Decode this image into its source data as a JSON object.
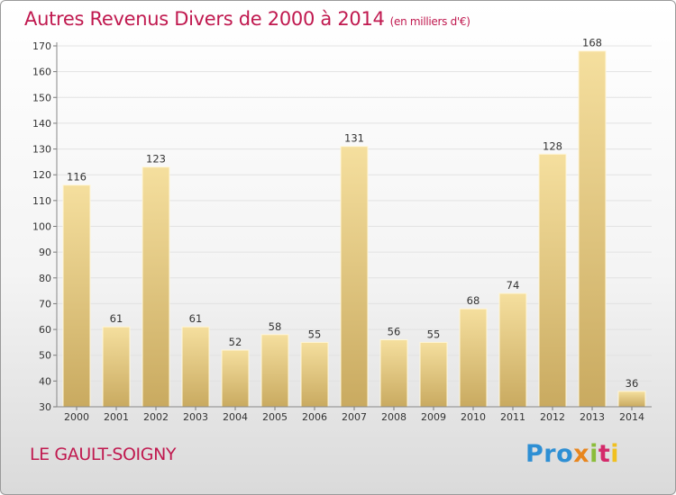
{
  "chart_data": {
    "type": "bar",
    "title": "Autres Revenus Divers de 2000 à 2014",
    "subtitle": "(en milliers d'€)",
    "categories": [
      "2000",
      "2001",
      "2002",
      "2003",
      "2004",
      "2005",
      "2006",
      "2007",
      "2008",
      "2009",
      "2010",
      "2011",
      "2012",
      "2013",
      "2014"
    ],
    "values": [
      116,
      61,
      123,
      61,
      52,
      58,
      55,
      131,
      56,
      55,
      68,
      74,
      128,
      168,
      36
    ],
    "ylim": [
      30,
      170
    ],
    "yticks": [
      30,
      40,
      50,
      60,
      70,
      80,
      90,
      100,
      110,
      120,
      130,
      140,
      150,
      160,
      170
    ],
    "grid": true,
    "bar_color": "#e2c57a"
  },
  "footer": {
    "location": "LE GAULT-SOIGNY",
    "logo_parts": [
      "Pro",
      "x",
      "i",
      "t",
      "i"
    ]
  }
}
